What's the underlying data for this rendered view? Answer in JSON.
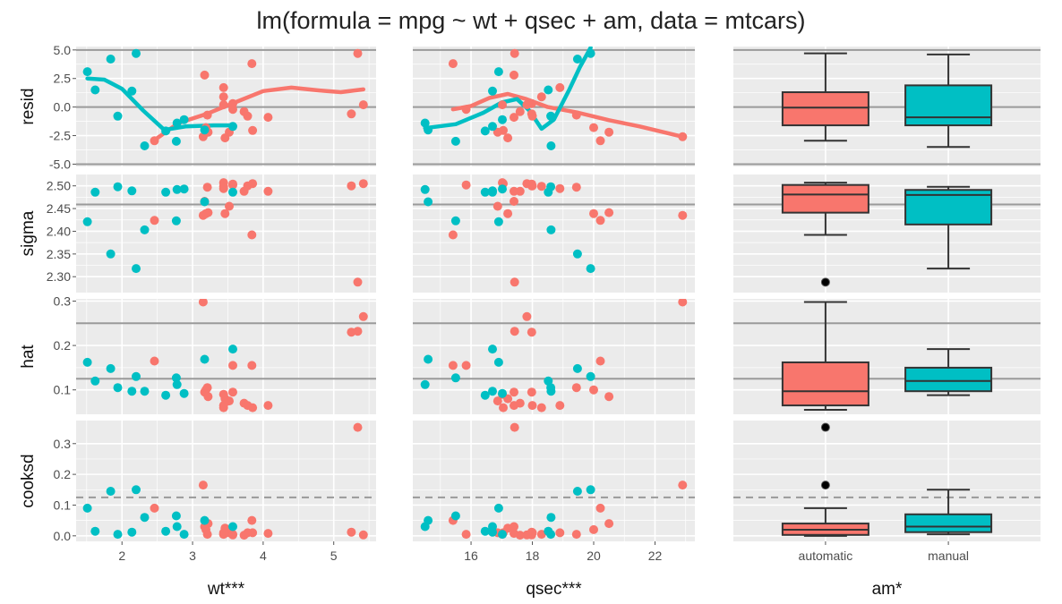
{
  "chart_data": {
    "type": "scatter",
    "title": "lm(formula = mpg ~ wt + qsec + am, data = mtcars)",
    "colors": {
      "automatic": "#F8766D",
      "manual": "#00BFC4",
      "ref": "#9a9a9a",
      "outlier": "#000000"
    },
    "rows": [
      {
        "name": "resid",
        "ylabel": "resid",
        "ylim": [
          -5.2,
          5.3
        ],
        "ticks": [
          -5.0,
          -2.5,
          0.0,
          2.5,
          5.0
        ],
        "tick_labels": [
          "-5.0",
          "-2.5",
          "0.0",
          "2.5",
          "5.0"
        ],
        "ref_lines": [
          -5.0,
          0.0,
          5.0
        ],
        "dashed": false
      },
      {
        "name": "sigma",
        "ylabel": "sigma",
        "ylim": [
          2.265,
          2.525
        ],
        "ticks": [
          2.3,
          2.35,
          2.4,
          2.45,
          2.5
        ],
        "tick_labels": [
          "2.30",
          "2.35",
          "2.40",
          "2.45",
          "2.50"
        ],
        "ref_lines": [
          2.459
        ],
        "dashed": false
      },
      {
        "name": "hat",
        "ylabel": "hat",
        "ylim": [
          0.045,
          0.305
        ],
        "ticks": [
          0.1,
          0.2,
          0.3
        ],
        "tick_labels": [
          "0.1",
          "0.2",
          "0.3"
        ],
        "ref_lines": [
          0.25,
          0.125
        ],
        "dashed": false
      },
      {
        "name": "cooksd",
        "ylabel": "cooksd",
        "ylim": [
          -0.018,
          0.375
        ],
        "ticks": [
          0.0,
          0.1,
          0.2,
          0.3
        ],
        "tick_labels": [
          "0.0",
          "0.1",
          "0.2",
          "0.3"
        ],
        "ref_lines": [
          0.125
        ],
        "dashed": true
      }
    ],
    "columns": [
      {
        "name": "wt",
        "xlabel": "wt***",
        "type": "continuous",
        "xlim": [
          1.35,
          5.6
        ],
        "ticks": [
          2,
          3,
          4,
          5
        ],
        "tick_labels": [
          "2",
          "3",
          "4",
          "5"
        ]
      },
      {
        "name": "qsec",
        "xlabel": "qsec***",
        "type": "continuous",
        "xlim": [
          14.1,
          23.3
        ],
        "ticks": [
          16,
          18,
          20,
          22
        ],
        "tick_labels": [
          "16",
          "18",
          "20",
          "22"
        ]
      },
      {
        "name": "am",
        "xlabel": "am*",
        "type": "categorical",
        "categories": [
          "automatic",
          "manual"
        ]
      }
    ],
    "points": [
      {
        "am": "automatic",
        "wt": 2.46,
        "qsec": 20.22,
        "resid": -2.95,
        "sigma": 2.424,
        "hat": 0.165,
        "cooksd": 0.09
      },
      {
        "am": "automatic",
        "wt": 3.15,
        "qsec": 22.9,
        "resid": -2.6,
        "sigma": 2.435,
        "hat": 0.298,
        "cooksd": 0.165
      },
      {
        "am": "automatic",
        "wt": 3.17,
        "qsec": 17.4,
        "resid": 2.8,
        "sigma": 2.466,
        "hat": 0.095,
        "cooksd": 0.03
      },
      {
        "am": "automatic",
        "wt": 3.19,
        "qsec": 20.0,
        "resid": -1.8,
        "sigma": 2.439,
        "hat": 0.1,
        "cooksd": 0.02
      },
      {
        "am": "automatic",
        "wt": 3.21,
        "qsec": 19.44,
        "resid": -0.7,
        "sigma": 2.497,
        "hat": 0.105,
        "cooksd": 0.005
      },
      {
        "am": "automatic",
        "wt": 3.22,
        "qsec": 20.5,
        "resid": -2.2,
        "sigma": 2.441,
        "hat": 0.085,
        "cooksd": 0.04
      },
      {
        "am": "automatic",
        "wt": 3.44,
        "qsec": 17.02,
        "resid": 0.2,
        "sigma": 2.507,
        "hat": 0.09,
        "cooksd": 0.005
      },
      {
        "am": "automatic",
        "wt": 3.44,
        "qsec": 18.3,
        "resid": 0.9,
        "sigma": 2.499,
        "hat": 0.06,
        "cooksd": 0.005
      },
      {
        "am": "automatic",
        "wt": 3.44,
        "qsec": 18.9,
        "resid": 1.7,
        "sigma": 2.494,
        "hat": 0.065,
        "cooksd": 0.01
      },
      {
        "am": "automatic",
        "wt": 3.46,
        "qsec": 17.2,
        "resid": -2.7,
        "sigma": 2.439,
        "hat": 0.08,
        "cooksd": 0.025
      },
      {
        "am": "automatic",
        "wt": 3.52,
        "qsec": 16.87,
        "resid": -2.2,
        "sigma": 2.455,
        "hat": 0.075,
        "cooksd": 0.01
      },
      {
        "am": "automatic",
        "wt": 3.57,
        "qsec": 15.84,
        "resid": -0.2,
        "sigma": 2.502,
        "hat": 0.155,
        "cooksd": 0.005
      },
      {
        "am": "automatic",
        "wt": 3.57,
        "qsec": 17.98,
        "resid": 0.3,
        "sigma": 2.504,
        "hat": 0.095,
        "cooksd": 0.003
      },
      {
        "am": "automatic",
        "wt": 3.73,
        "qsec": 17.6,
        "resid": -0.4,
        "sigma": 2.488,
        "hat": 0.07,
        "cooksd": 0.002
      },
      {
        "am": "automatic",
        "wt": 3.78,
        "qsec": 18.0,
        "resid": -0.8,
        "sigma": 2.5,
        "hat": 0.065,
        "cooksd": 0.01
      },
      {
        "am": "automatic",
        "wt": 3.84,
        "qsec": 15.41,
        "resid": 3.8,
        "sigma": 2.392,
        "hat": 0.155,
        "cooksd": 0.05
      },
      {
        "am": "automatic",
        "wt": 3.85,
        "qsec": 17.05,
        "resid": -2.05,
        "sigma": 2.505,
        "hat": 0.06,
        "cooksd": 0.01
      },
      {
        "am": "automatic",
        "wt": 4.07,
        "qsec": 17.4,
        "resid": -0.9,
        "sigma": 2.488,
        "hat": 0.065,
        "cooksd": 0.008
      },
      {
        "am": "automatic",
        "wt": 5.25,
        "qsec": 17.98,
        "resid": -0.6,
        "sigma": 2.5,
        "hat": 0.23,
        "cooksd": 0.012
      },
      {
        "am": "automatic",
        "wt": 5.34,
        "qsec": 17.42,
        "resid": 4.7,
        "sigma": 2.288,
        "hat": 0.232,
        "cooksd": 0.353
      },
      {
        "am": "automatic",
        "wt": 5.42,
        "qsec": 17.82,
        "resid": 0.2,
        "sigma": 2.505,
        "hat": 0.265,
        "cooksd": 0.003
      },
      {
        "am": "manual",
        "wt": 1.51,
        "qsec": 16.9,
        "resid": 3.1,
        "sigma": 2.421,
        "hat": 0.162,
        "cooksd": 0.09
      },
      {
        "am": "manual",
        "wt": 1.62,
        "qsec": 18.52,
        "resid": 1.5,
        "sigma": 2.486,
        "hat": 0.12,
        "cooksd": 0.015
      },
      {
        "am": "manual",
        "wt": 1.84,
        "qsec": 19.47,
        "resid": 4.2,
        "sigma": 2.35,
        "hat": 0.148,
        "cooksd": 0.145
      },
      {
        "am": "manual",
        "wt": 1.94,
        "qsec": 18.6,
        "resid": -0.8,
        "sigma": 2.498,
        "hat": 0.105,
        "cooksd": 0.005
      },
      {
        "am": "manual",
        "wt": 2.14,
        "qsec": 16.7,
        "resid": 1.4,
        "sigma": 2.489,
        "hat": 0.097,
        "cooksd": 0.012
      },
      {
        "am": "manual",
        "wt": 2.2,
        "qsec": 19.9,
        "resid": 4.7,
        "sigma": 2.318,
        "hat": 0.13,
        "cooksd": 0.15
      },
      {
        "am": "manual",
        "wt": 2.32,
        "qsec": 18.61,
        "resid": -3.4,
        "sigma": 2.403,
        "hat": 0.097,
        "cooksd": 0.06
      },
      {
        "am": "manual",
        "wt": 2.62,
        "qsec": 16.46,
        "resid": -2.1,
        "sigma": 2.486,
        "hat": 0.088,
        "cooksd": 0.015
      },
      {
        "am": "manual",
        "wt": 2.77,
        "qsec": 15.5,
        "resid": -3.0,
        "sigma": 2.423,
        "hat": 0.127,
        "cooksd": 0.065
      },
      {
        "am": "manual",
        "wt": 2.78,
        "qsec": 14.5,
        "resid": -1.4,
        "sigma": 2.492,
        "hat": 0.112,
        "cooksd": 0.03
      },
      {
        "am": "manual",
        "wt": 2.88,
        "qsec": 17.02,
        "resid": -1.1,
        "sigma": 2.493,
        "hat": 0.092,
        "cooksd": 0.005
      },
      {
        "am": "manual",
        "wt": 3.17,
        "qsec": 14.6,
        "resid": -2.0,
        "sigma": 2.465,
        "hat": 0.169,
        "cooksd": 0.05
      },
      {
        "am": "manual",
        "wt": 3.57,
        "qsec": 16.7,
        "resid": -1.7,
        "sigma": 2.486,
        "hat": 0.192,
        "cooksd": 0.03
      }
    ],
    "smooth": {
      "wt": {
        "automatic": [
          [
            2.46,
            -2.9
          ],
          [
            2.8,
            -1.4
          ],
          [
            3.2,
            -0.6
          ],
          [
            3.6,
            0.4
          ],
          [
            4.0,
            1.4
          ],
          [
            4.4,
            1.7
          ],
          [
            4.8,
            1.45
          ],
          [
            5.1,
            1.3
          ],
          [
            5.42,
            1.55
          ]
        ],
        "manual": [
          [
            1.51,
            2.5
          ],
          [
            1.75,
            2.4
          ],
          [
            2.0,
            1.6
          ],
          [
            2.3,
            -0.3
          ],
          [
            2.6,
            -2.0
          ],
          [
            2.9,
            -1.7
          ],
          [
            3.3,
            -1.6
          ],
          [
            3.57,
            -1.6
          ]
        ]
      },
      "qsec": {
        "automatic": [
          [
            15.41,
            -0.2
          ],
          [
            16.0,
            0.1
          ],
          [
            16.6,
            0.8
          ],
          [
            17.2,
            1.15
          ],
          [
            17.8,
            0.7
          ],
          [
            18.5,
            0.0
          ],
          [
            19.5,
            -0.5
          ],
          [
            20.5,
            -1.15
          ],
          [
            21.5,
            -1.7
          ],
          [
            22.9,
            -2.6
          ]
        ],
        "manual": [
          [
            14.5,
            -1.85
          ],
          [
            15.5,
            -1.5
          ],
          [
            16.4,
            -0.5
          ],
          [
            17.0,
            0.4
          ],
          [
            17.5,
            0.7
          ],
          [
            17.9,
            -0.3
          ],
          [
            18.3,
            -1.9
          ],
          [
            18.7,
            -1.1
          ],
          [
            19.2,
            1.5
          ],
          [
            19.55,
            3.5
          ],
          [
            19.9,
            5.2
          ]
        ]
      }
    },
    "box_stats": {
      "resid": {
        "automatic": {
          "lower": -2.95,
          "q1": -1.6,
          "median": -0.05,
          "q3": 1.3,
          "upper": 4.7,
          "outliers": []
        },
        "manual": {
          "lower": -3.5,
          "q1": -1.6,
          "median": -0.9,
          "q3": 1.9,
          "upper": 4.6,
          "outliers": []
        }
      },
      "sigma": {
        "automatic": {
          "lower": 2.392,
          "q1": 2.441,
          "median": 2.481,
          "q3": 2.502,
          "upper": 2.507,
          "outliers": [
            2.288
          ]
        },
        "manual": {
          "lower": 2.318,
          "q1": 2.415,
          "median": 2.48,
          "q3": 2.491,
          "upper": 2.498,
          "outliers": []
        }
      },
      "hat": {
        "automatic": {
          "lower": 0.055,
          "q1": 0.065,
          "median": 0.097,
          "q3": 0.162,
          "upper": 0.298,
          "outliers": []
        },
        "manual": {
          "lower": 0.088,
          "q1": 0.097,
          "median": 0.12,
          "q3": 0.15,
          "upper": 0.192,
          "outliers": []
        }
      },
      "cooksd": {
        "automatic": {
          "lower": 0.0,
          "q1": 0.003,
          "median": 0.02,
          "q3": 0.04,
          "upper": 0.09,
          "outliers": [
            0.353,
            0.165
          ]
        },
        "manual": {
          "lower": 0.005,
          "q1": 0.012,
          "median": 0.03,
          "q3": 0.07,
          "upper": 0.15,
          "outliers": []
        }
      }
    }
  }
}
